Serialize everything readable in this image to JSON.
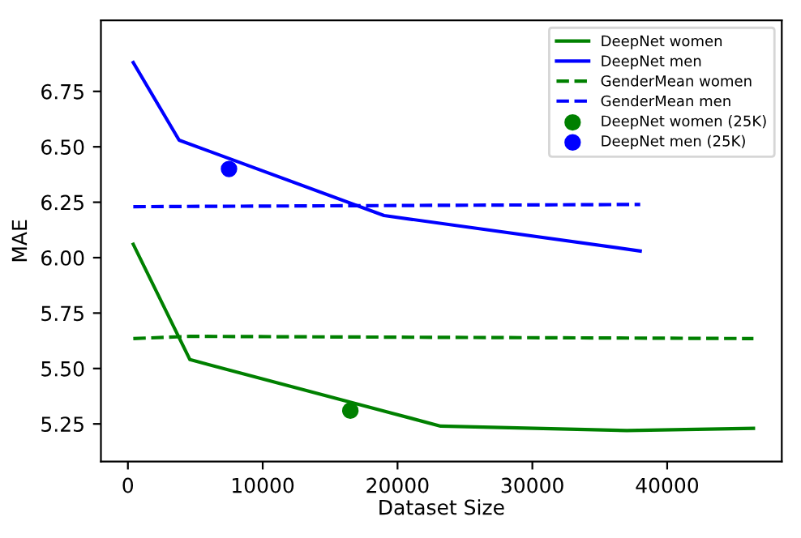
{
  "chart_data": {
    "type": "line",
    "xlabel": "Dataset Size",
    "ylabel": "MAE",
    "xlim": [
      -2000,
      48500
    ],
    "xticks": [
      0,
      10000,
      20000,
      30000,
      40000
    ],
    "ylim": [
      5.08,
      7.07
    ],
    "yticks": [
      5.25,
      {
        "value": 5.5,
        "label": "5.50"
      },
      5.75,
      {
        "value": 6,
        "label": "6.00"
      },
      6.25,
      {
        "value": 6.5,
        "label": "6.50"
      },
      6.75
    ],
    "grid": false,
    "legend": "top right",
    "series": [
      {
        "name": "DeepNet women",
        "color": "#008000",
        "line_style": "solid",
        "x": [
          400,
          4600,
          23200,
          37000,
          46400
        ],
        "values": [
          6.06,
          5.54,
          5.24,
          5.22,
          5.23
        ]
      },
      {
        "name": "DeepNet men",
        "color": "#0000ff",
        "line_style": "solid",
        "x": [
          400,
          3800,
          19000,
          38000
        ],
        "values": [
          6.88,
          6.53,
          6.19,
          6.03
        ]
      },
      {
        "name": "GenderMean women",
        "color": "#008000",
        "line_style": "dashed",
        "x": [
          400,
          4600,
          46400
        ],
        "values": [
          5.635,
          5.645,
          5.635
        ]
      },
      {
        "name": "GenderMean men",
        "color": "#0000ff",
        "line_style": "dashed",
        "x": [
          400,
          38000
        ],
        "values": [
          6.23,
          6.24
        ]
      },
      {
        "name": "DeepNet women (25K)",
        "type": "scatter",
        "marker": "circle",
        "color": "#008000",
        "x": [
          16500
        ],
        "values": [
          5.31
        ]
      },
      {
        "name": "DeepNet men (25K)",
        "type": "scatter",
        "marker": "circle",
        "color": "#0000ff",
        "x": [
          7500
        ],
        "values": [
          6.4
        ]
      }
    ]
  }
}
